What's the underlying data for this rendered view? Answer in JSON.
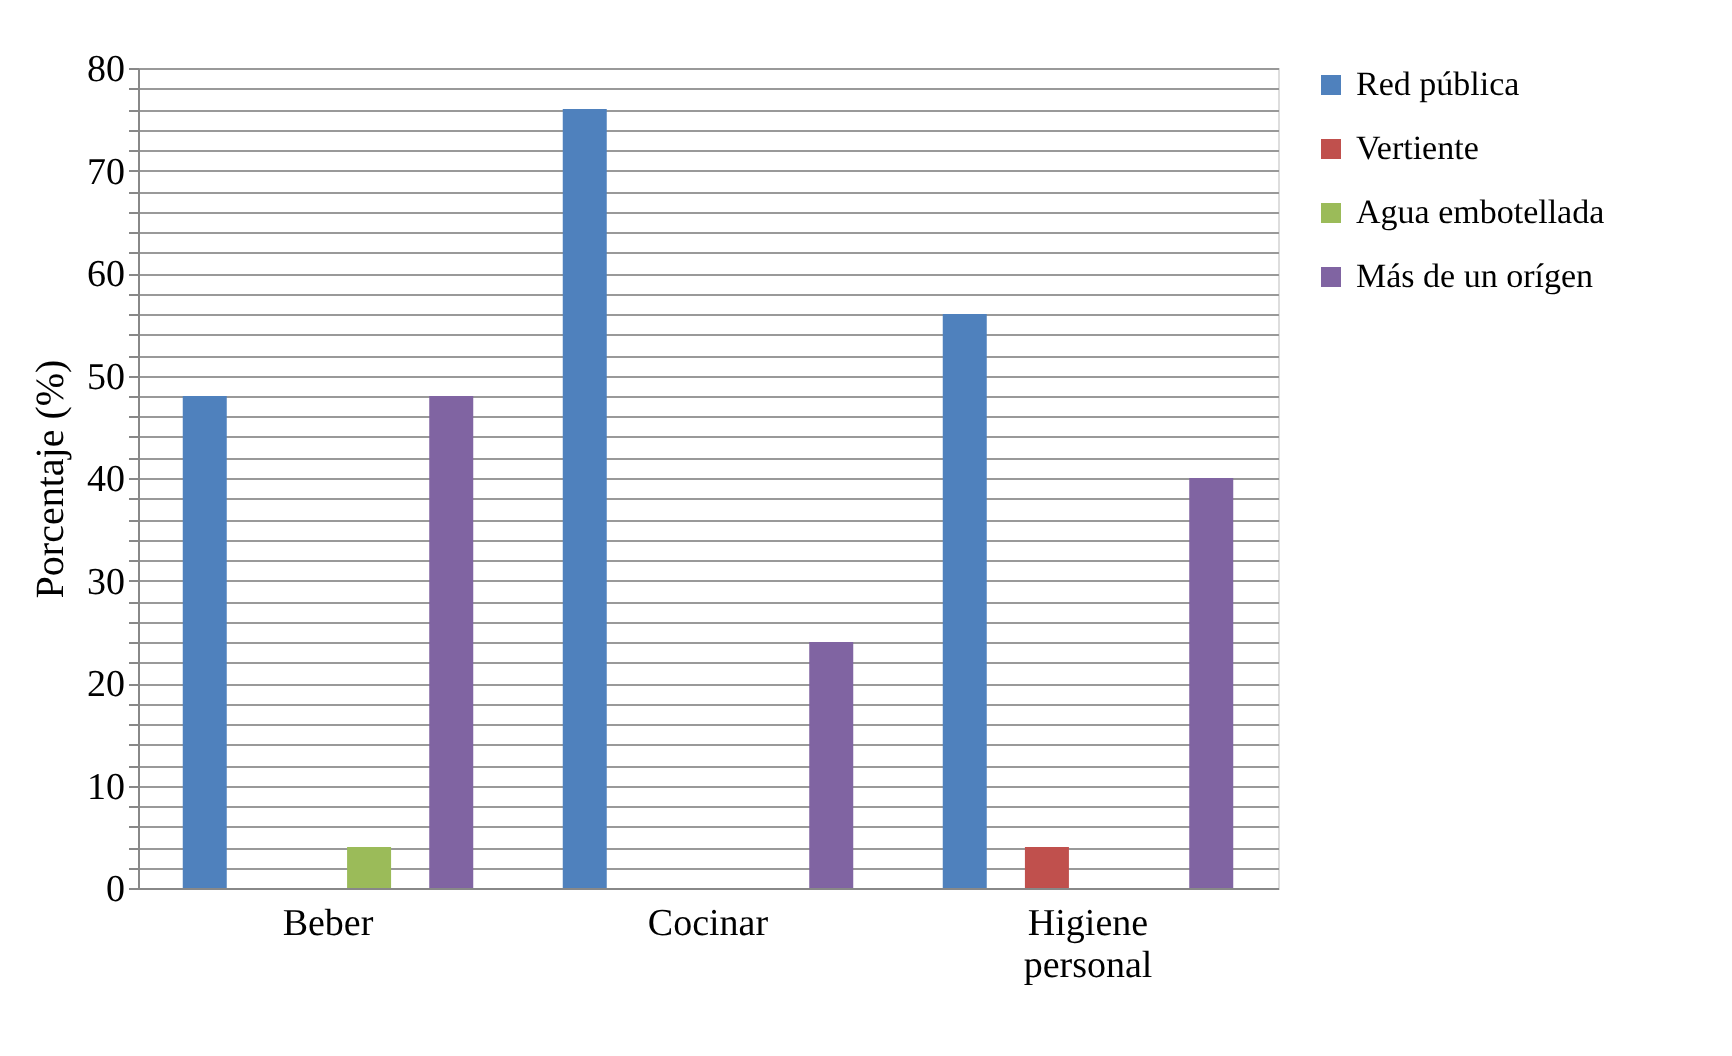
{
  "chart_data": {
    "type": "bar",
    "ylabel": "Porcentaje (%)",
    "categories": [
      "Beber",
      "Cocinar",
      "Higiene personal"
    ],
    "series": [
      {
        "name": "Red pública",
        "color": "#4f81bd",
        "values": [
          48,
          76,
          56
        ]
      },
      {
        "name": "Vertiente",
        "color": "#c0504d",
        "values": [
          0,
          0,
          4
        ]
      },
      {
        "name": "Agua embotellada",
        "color": "#9bbb59",
        "values": [
          4,
          0,
          0
        ]
      },
      {
        "name": "Más de un orígen",
        "color": "#8064a2",
        "values": [
          48,
          24,
          40
        ]
      }
    ],
    "ylim": [
      0,
      80
    ],
    "yticks": [
      0,
      {
        "value": 2,
        "label": null
      },
      {
        "value": 4,
        "label": null
      },
      {
        "value": 6,
        "label": null
      },
      {
        "value": 8,
        "label": null
      },
      10,
      {
        "value": 12,
        "label": null
      },
      {
        "value": 14,
        "label": null
      },
      {
        "value": 16,
        "label": null
      },
      {
        "value": 18,
        "label": null
      },
      20,
      {
        "value": 22,
        "label": null
      },
      {
        "value": 24,
        "label": null
      },
      {
        "value": 26,
        "label": null
      },
      {
        "value": 28,
        "label": null
      },
      30,
      {
        "value": 32,
        "label": null
      },
      {
        "value": 34,
        "label": null
      },
      {
        "value": 36,
        "label": null
      },
      {
        "value": 38,
        "label": null
      },
      40,
      {
        "value": 42,
        "label": null
      },
      {
        "value": 44,
        "label": null
      },
      {
        "value": 46,
        "label": null
      },
      {
        "value": 48,
        "label": null
      },
      50,
      {
        "value": 52,
        "label": null
      },
      {
        "value": 54,
        "label": null
      },
      {
        "value": 56,
        "label": null
      },
      {
        "value": 58,
        "label": null
      },
      60,
      {
        "value": 62,
        "label": null
      },
      {
        "value": 64,
        "label": null
      },
      {
        "value": 66,
        "label": null
      },
      {
        "value": 68,
        "label": null
      },
      70,
      {
        "value": 72,
        "label": null
      },
      {
        "value": 74,
        "label": null
      },
      {
        "value": 76,
        "label": null
      },
      {
        "value": 78,
        "label": null
      },
      80
    ],
    "grid": "y",
    "legend": "right"
  }
}
